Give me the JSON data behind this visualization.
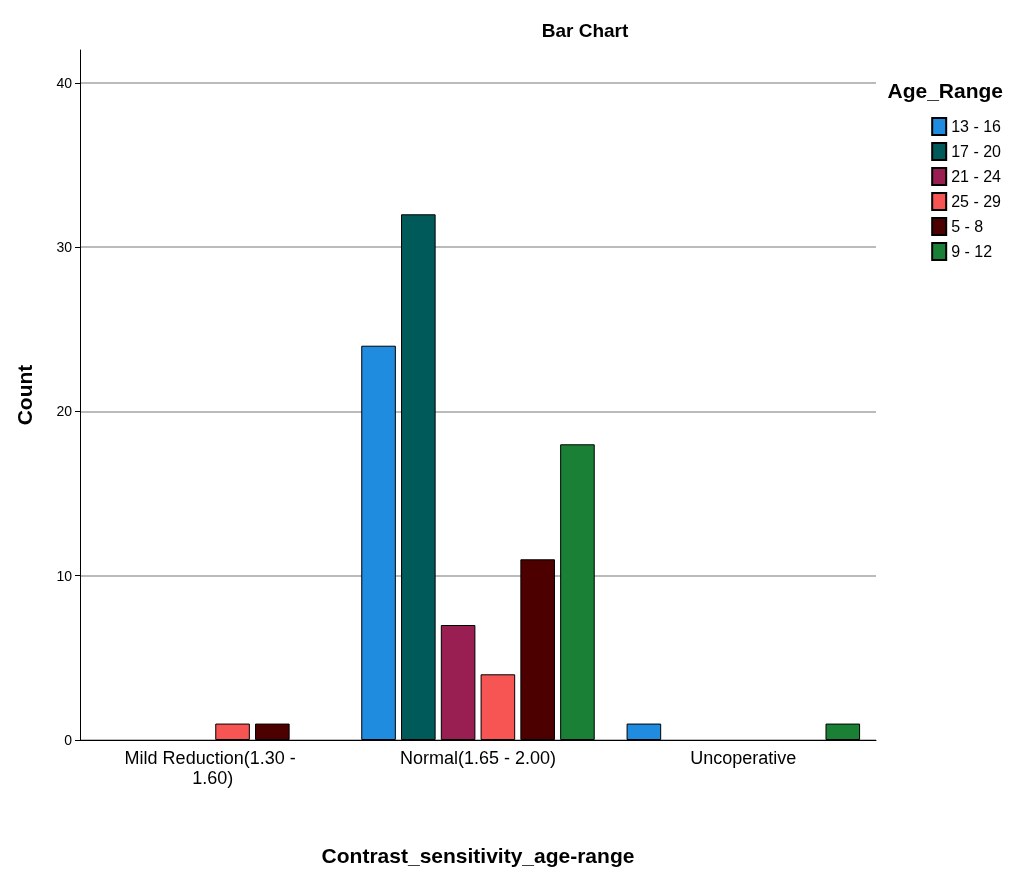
{
  "chart_data": {
    "type": "bar",
    "title": "Bar Chart",
    "xlabel": "Contrast_sensitivity_age-range",
    "ylabel": "Count",
    "legend_title": "Age_Range",
    "categories": [
      "Mild Reduction(1.30 - 1.60)",
      "Normal(1.65 - 2.00)",
      "Uncoperative"
    ],
    "series": [
      {
        "name": "13 - 16",
        "color": "#1f8ce0",
        "values": [
          0,
          24,
          1
        ]
      },
      {
        "name": "17 - 20",
        "color": "#005a5a",
        "values": [
          0,
          32,
          0
        ]
      },
      {
        "name": "21 - 24",
        "color": "#991e52",
        "values": [
          0,
          7,
          0
        ]
      },
      {
        "name": "25 - 29",
        "color": "#f75454",
        "values": [
          1,
          4,
          0
        ]
      },
      {
        "name": "5 - 8",
        "color": "#4d0000",
        "values": [
          1,
          11,
          0
        ]
      },
      {
        "name": "9 - 12",
        "color": "#1a8036",
        "values": [
          0,
          18,
          1
        ]
      }
    ],
    "ylim": [
      0,
      42
    ],
    "yticks": [
      0,
      10,
      20,
      30,
      40
    ],
    "grid": "y",
    "legend": "top right"
  }
}
